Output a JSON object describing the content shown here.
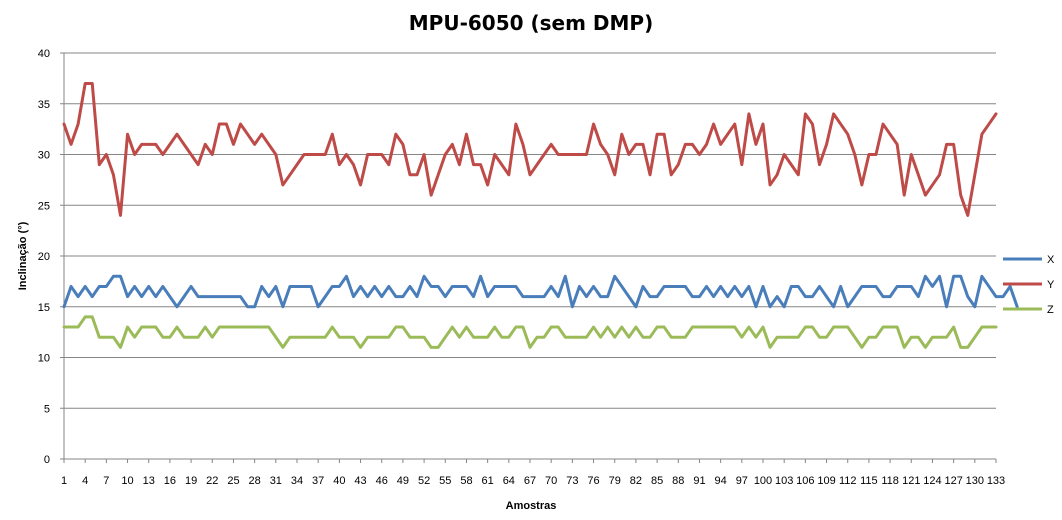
{
  "chart_data": {
    "type": "line",
    "title": "MPU-6050 (sem DMP)",
    "xlabel": "Amostras",
    "ylabel": "Inclinação  (°)",
    "ylim": [
      0,
      40
    ],
    "y_ticks": [
      0,
      5,
      10,
      15,
      20,
      25,
      30,
      35,
      40
    ],
    "x_tick_labels": [
      "1",
      "4",
      "7",
      "10",
      "13",
      "16",
      "19",
      "22",
      "25",
      "28",
      "31",
      "34",
      "37",
      "40",
      "43",
      "46",
      "49",
      "52",
      "55",
      "58",
      "61",
      "64",
      "67",
      "70",
      "73",
      "76",
      "79",
      "82",
      "85",
      "88",
      "91",
      "94",
      "97",
      "100",
      "103",
      "106",
      "109",
      "112",
      "115",
      "118",
      "121",
      "124",
      "127",
      "130",
      "133"
    ],
    "grid": "horizontal",
    "legend_position": "right",
    "series": [
      {
        "name": "X",
        "color": "#4a7ebb",
        "values": [
          15,
          17,
          16,
          17,
          16,
          17,
          17,
          18,
          18,
          16,
          17,
          16,
          17,
          16,
          17,
          16,
          15,
          16,
          17,
          16,
          16,
          16,
          16,
          16,
          16,
          16,
          15,
          15,
          17,
          16,
          17,
          15,
          17,
          17,
          17,
          17,
          15,
          16,
          17,
          17,
          18,
          16,
          17,
          16,
          17,
          16,
          17,
          16,
          16,
          17,
          16,
          18,
          17,
          17,
          16,
          17,
          17,
          17,
          16,
          18,
          16,
          17,
          17,
          17,
          17,
          16,
          16,
          16,
          16,
          17,
          16,
          18,
          15,
          17,
          16,
          17,
          16,
          16,
          18,
          17,
          16,
          15,
          17,
          16,
          16,
          17,
          17,
          17,
          17,
          16,
          16,
          17,
          16,
          17,
          16,
          17,
          16,
          17,
          15,
          17,
          15,
          16,
          15,
          17,
          17,
          16,
          16,
          17,
          16,
          15,
          17,
          15,
          16,
          17,
          17,
          17,
          16,
          16,
          17,
          17,
          17,
          16,
          18,
          17,
          18,
          15,
          18,
          18,
          16,
          15,
          18,
          17,
          16,
          16,
          17,
          15
        ]
      },
      {
        "name": "Y",
        "color": "#be4b48",
        "values": [
          33,
          31,
          33,
          37,
          37,
          29,
          30,
          28,
          24,
          32,
          30,
          31,
          31,
          31,
          30,
          31,
          32,
          31,
          30,
          29,
          31,
          30,
          33,
          33,
          31,
          33,
          32,
          31,
          32,
          31,
          30,
          27,
          28,
          29,
          30,
          30,
          30,
          30,
          32,
          29,
          30,
          29,
          27,
          30,
          30,
          30,
          29,
          32,
          31,
          28,
          28,
          30,
          26,
          28,
          30,
          31,
          29,
          32,
          29,
          29,
          27,
          30,
          29,
          28,
          33,
          31,
          28,
          29,
          30,
          31,
          30,
          30,
          30,
          30,
          30,
          33,
          31,
          30,
          28,
          32,
          30,
          31,
          31,
          28,
          32,
          32,
          28,
          29,
          31,
          31,
          30,
          31,
          33,
          31,
          32,
          33,
          29,
          34,
          31,
          33,
          27,
          28,
          30,
          29,
          28,
          34,
          33,
          29,
          31,
          34,
          33,
          32,
          30,
          27,
          30,
          30,
          33,
          32,
          31,
          26,
          30,
          28,
          26,
          27,
          28,
          31,
          31,
          26,
          24,
          28,
          32,
          33,
          34
        ]
      },
      {
        "name": "Z",
        "color": "#9bbb59",
        "values": [
          13,
          13,
          13,
          14,
          14,
          12,
          12,
          12,
          11,
          13,
          12,
          13,
          13,
          13,
          12,
          12,
          13,
          12,
          12,
          12,
          13,
          12,
          13,
          13,
          13,
          13,
          13,
          13,
          13,
          13,
          12,
          11,
          12,
          12,
          12,
          12,
          12,
          12,
          13,
          12,
          12,
          12,
          11,
          12,
          12,
          12,
          12,
          13,
          13,
          12,
          12,
          12,
          11,
          11,
          12,
          13,
          12,
          13,
          12,
          12,
          12,
          13,
          12,
          12,
          13,
          13,
          11,
          12,
          12,
          13,
          13,
          12,
          12,
          12,
          12,
          13,
          12,
          13,
          12,
          13,
          12,
          13,
          12,
          12,
          13,
          13,
          12,
          12,
          12,
          13,
          13,
          13,
          13,
          13,
          13,
          13,
          12,
          13,
          12,
          13,
          11,
          12,
          12,
          12,
          12,
          13,
          13,
          12,
          12,
          13,
          13,
          13,
          12,
          11,
          12,
          12,
          13,
          13,
          13,
          11,
          12,
          12,
          11,
          12,
          12,
          12,
          13,
          11,
          11,
          12,
          13,
          13,
          13
        ]
      }
    ]
  }
}
